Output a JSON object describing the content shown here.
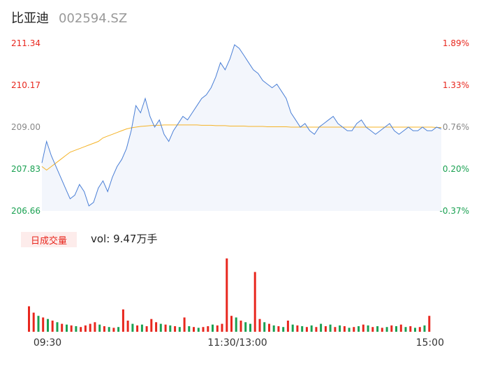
{
  "header": {
    "name": "比亚迪",
    "code": "002594.SZ"
  },
  "volume": {
    "tag": "日成交量",
    "label": "vol:",
    "value": "9.47万手"
  },
  "colors": {
    "price_line": "#4a7fd6",
    "avg_line": "#f5b326",
    "up": "#e8271e",
    "down": "#1aa152",
    "area_fill": "#f3f6fc"
  },
  "chart_data": {
    "type": "line",
    "price_ticks": [
      "211.34",
      "210.17",
      "209.00",
      "207.83",
      "206.66"
    ],
    "pct_ticks": [
      "1.89%",
      "1.33%",
      "0.76%",
      "0.20%",
      "-0.37%"
    ],
    "ylim": [
      206.66,
      211.34
    ],
    "x_ticks": [
      "09:30",
      "11:30/13:00",
      "15:00"
    ],
    "price": [
      208.0,
      208.6,
      208.2,
      207.9,
      207.6,
      207.3,
      207.0,
      207.1,
      207.4,
      207.2,
      206.8,
      206.9,
      207.3,
      207.5,
      207.2,
      207.6,
      207.9,
      208.1,
      208.4,
      208.9,
      209.6,
      209.4,
      209.8,
      209.3,
      209.0,
      209.2,
      208.8,
      208.6,
      208.9,
      209.1,
      209.3,
      209.2,
      209.4,
      209.6,
      209.8,
      209.9,
      210.1,
      210.4,
      210.8,
      210.6,
      210.9,
      211.3,
      211.2,
      211.0,
      210.8,
      210.6,
      210.5,
      210.3,
      210.2,
      210.1,
      210.2,
      210.0,
      209.8,
      209.4,
      209.2,
      209.0,
      209.1,
      208.9,
      208.8,
      209.0,
      209.1,
      209.2,
      209.3,
      209.1,
      209.0,
      208.9,
      208.9,
      209.1,
      209.2,
      209.0,
      208.9,
      208.8,
      208.9,
      209.0,
      209.1,
      208.9,
      208.8,
      208.9,
      209.0,
      208.9,
      208.9,
      209.0,
      208.9,
      208.9,
      209.0,
      208.95
    ],
    "avg": [
      207.9,
      207.8,
      207.9,
      208.0,
      208.1,
      208.2,
      208.3,
      208.35,
      208.4,
      208.45,
      208.5,
      208.55,
      208.6,
      208.7,
      208.75,
      208.8,
      208.85,
      208.9,
      208.95,
      208.98,
      209.0,
      209.02,
      209.03,
      209.04,
      209.05,
      209.05,
      209.06,
      209.06,
      209.06,
      209.06,
      209.06,
      209.06,
      209.06,
      209.06,
      209.05,
      209.05,
      209.05,
      209.04,
      209.04,
      209.04,
      209.03,
      209.03,
      209.03,
      209.03,
      209.02,
      209.02,
      209.02,
      209.02,
      209.01,
      209.01,
      209.01,
      209.01,
      209.01,
      209.0,
      209.0,
      209.0,
      209.0,
      209.0,
      209.0,
      209.0,
      209.0,
      209.0,
      209.0,
      209.0,
      209.0,
      209.0,
      209.0,
      209.0,
      209.0,
      209.0,
      209.0,
      209.0,
      209.0,
      209.0,
      209.0,
      209.0,
      209.0,
      209.0,
      209.0,
      209.0,
      209.0,
      209.0,
      209.0,
      209.0,
      208.99,
      208.99
    ],
    "volume": [
      32,
      24,
      20,
      18,
      16,
      14,
      12,
      10,
      9,
      8,
      7,
      6,
      8,
      10,
      12,
      9,
      7,
      6,
      5,
      6,
      28,
      14,
      10,
      8,
      9,
      7,
      16,
      12,
      10,
      9,
      8,
      7,
      6,
      18,
      7,
      6,
      5,
      6,
      7,
      9,
      8,
      10,
      92,
      20,
      18,
      14,
      12,
      10,
      75,
      16,
      12,
      10,
      8,
      7,
      6,
      14,
      9,
      8,
      7,
      6,
      8,
      6,
      10,
      7,
      9,
      6,
      8,
      7,
      5,
      6,
      7,
      9,
      8,
      6,
      7,
      5,
      6,
      8,
      7,
      9,
      6,
      7,
      5,
      6,
      8,
      20
    ],
    "volume_up": [
      true,
      true,
      false,
      true,
      false,
      true,
      false,
      true,
      false,
      true,
      false,
      true,
      true,
      true,
      true,
      false,
      true,
      false,
      true,
      false,
      true,
      true,
      false,
      true,
      false,
      true,
      true,
      true,
      false,
      true,
      false,
      true,
      false,
      true,
      false,
      true,
      false,
      true,
      true,
      false,
      true,
      true,
      true,
      true,
      false,
      true,
      false,
      false,
      true,
      true,
      false,
      true,
      false,
      true,
      false,
      true,
      false,
      true,
      false,
      true,
      false,
      true,
      false,
      true,
      false,
      true,
      false,
      true,
      false,
      true,
      false,
      true,
      false,
      true,
      false,
      true,
      false,
      true,
      false,
      true,
      false,
      true,
      false,
      true,
      false,
      true
    ]
  }
}
